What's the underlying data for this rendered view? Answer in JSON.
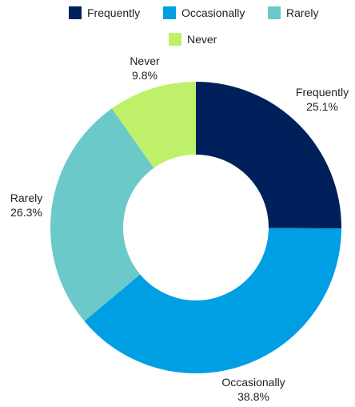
{
  "chart_data": {
    "type": "pie",
    "donut": true,
    "legend_position": "top",
    "series": [
      {
        "name": "Frequently",
        "value": 25.1,
        "label": "25.1%",
        "color": "#00205B"
      },
      {
        "name": "Occasionally",
        "value": 38.8,
        "label": "38.8%",
        "color": "#009FE3"
      },
      {
        "name": "Rarely",
        "value": 26.3,
        "label": "26.3%",
        "color": "#6CC9CA"
      },
      {
        "name": "Never",
        "value": 9.8,
        "label": "9.8%",
        "color": "#BFF06A"
      }
    ]
  }
}
